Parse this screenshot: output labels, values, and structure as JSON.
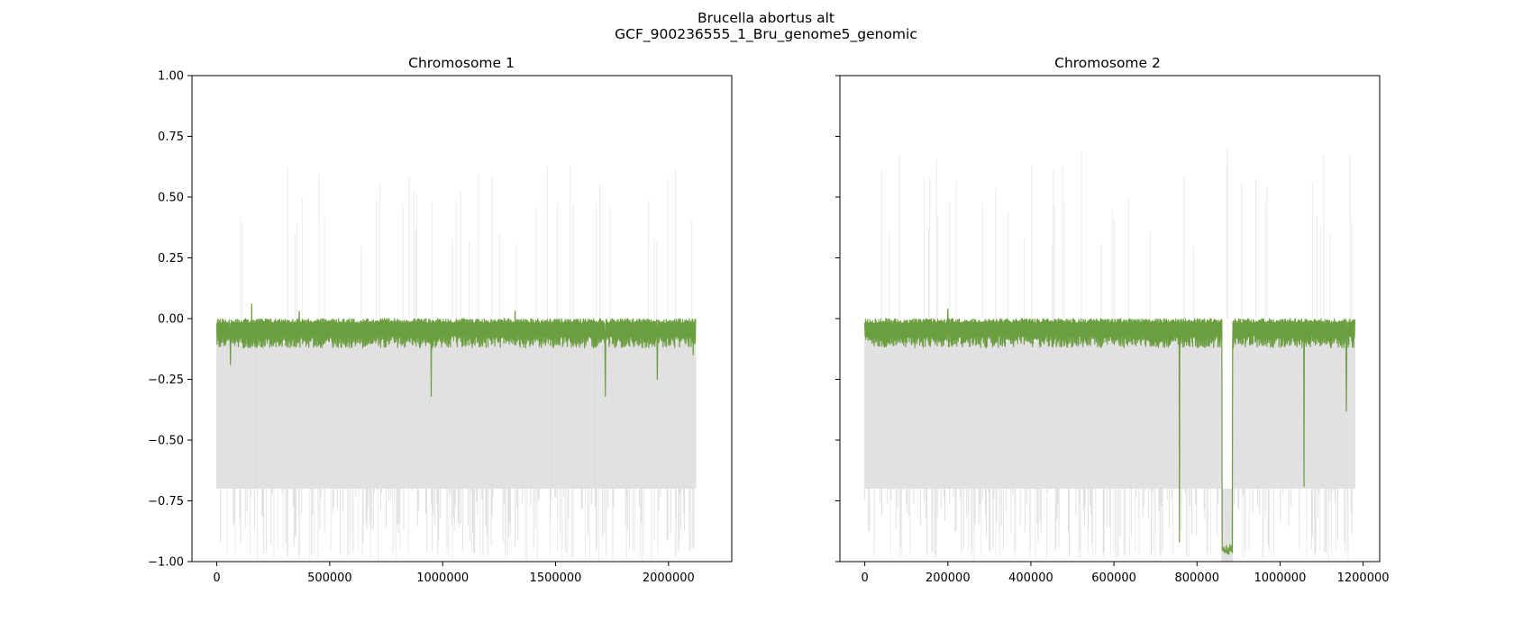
{
  "figure": {
    "suptitle_line1": "Brucella abortus alt",
    "suptitle_line2": "GCF_900236555_1_Bru_genome5_genomic"
  },
  "chart_data": [
    {
      "type": "line",
      "title": "Chromosome 1",
      "xlabel": "",
      "ylabel": "",
      "xlim": [
        -110000,
        2280000
      ],
      "ylim": [
        -1.0,
        1.0
      ],
      "x_ticks": [
        0,
        500000,
        1000000,
        1500000,
        2000000
      ],
      "x_tick_labels": [
        "0",
        "500000",
        "1000000",
        "1500000",
        "2000000"
      ],
      "y_ticks": [
        -1.0,
        -0.75,
        -0.5,
        -0.25,
        0.0,
        0.25,
        0.5,
        0.75,
        1.0
      ],
      "y_tick_labels": [
        "−1.00",
        "−0.75",
        "−0.50",
        "−0.25",
        "0.00",
        "0.25",
        "0.50",
        "0.75",
        "1.00"
      ],
      "grid": false,
      "x_max_data": 2120000,
      "series": [
        {
          "role": "mean",
          "color": "#6a9e3f",
          "baseline": [
            0.0,
            -0.07
          ],
          "spikes": [
            {
              "x": 60000,
              "y": -0.19
            },
            {
              "x": 155000,
              "y": 0.06
            },
            {
              "x": 365000,
              "y": 0.03
            },
            {
              "x": 950000,
              "y": -0.32
            },
            {
              "x": 1320000,
              "y": 0.03
            },
            {
              "x": 1720000,
              "y": -0.32
            },
            {
              "x": 1950000,
              "y": -0.25
            },
            {
              "x": 2110000,
              "y": -0.15
            }
          ]
        },
        {
          "role": "range",
          "color": "#c9c5cb",
          "band": [
            -0.7,
            -0.05
          ],
          "extreme": [
            -1.0,
            0.65
          ]
        }
      ]
    },
    {
      "type": "line",
      "title": "Chromosome 2",
      "xlabel": "",
      "ylabel": "",
      "xlim": [
        -60000,
        1240000
      ],
      "ylim": [
        -1.0,
        1.0
      ],
      "x_ticks": [
        0,
        200000,
        400000,
        600000,
        800000,
        1000000,
        1200000
      ],
      "x_tick_labels": [
        "0",
        "200000",
        "400000",
        "600000",
        "800000",
        "1000000",
        "1200000"
      ],
      "y_ticks": [
        -1.0,
        -0.75,
        -0.5,
        -0.25,
        0.0,
        0.25,
        0.5,
        0.75,
        1.0
      ],
      "y_tick_labels": [
        "",
        "",
        "",
        "",
        "",
        "",
        "",
        "",
        ""
      ],
      "grid": false,
      "x_max_data": 1180000,
      "series": [
        {
          "role": "mean",
          "color": "#6a9e3f",
          "baseline": [
            0.0,
            -0.07
          ],
          "spikes": [
            {
              "x": 200000,
              "y": 0.04
            },
            {
              "x": 758000,
              "y": -0.92
            },
            {
              "x": 1058000,
              "y": -0.69
            },
            {
              "x": 1160000,
              "y": -0.38
            }
          ],
          "gap": [
            {
              "start": 860000,
              "end": 885000,
              "y": -0.95
            }
          ]
        },
        {
          "role": "range",
          "color": "#c9c5cb",
          "band": [
            -0.7,
            -0.05
          ],
          "extreme": [
            -1.0,
            0.7
          ]
        }
      ]
    }
  ]
}
